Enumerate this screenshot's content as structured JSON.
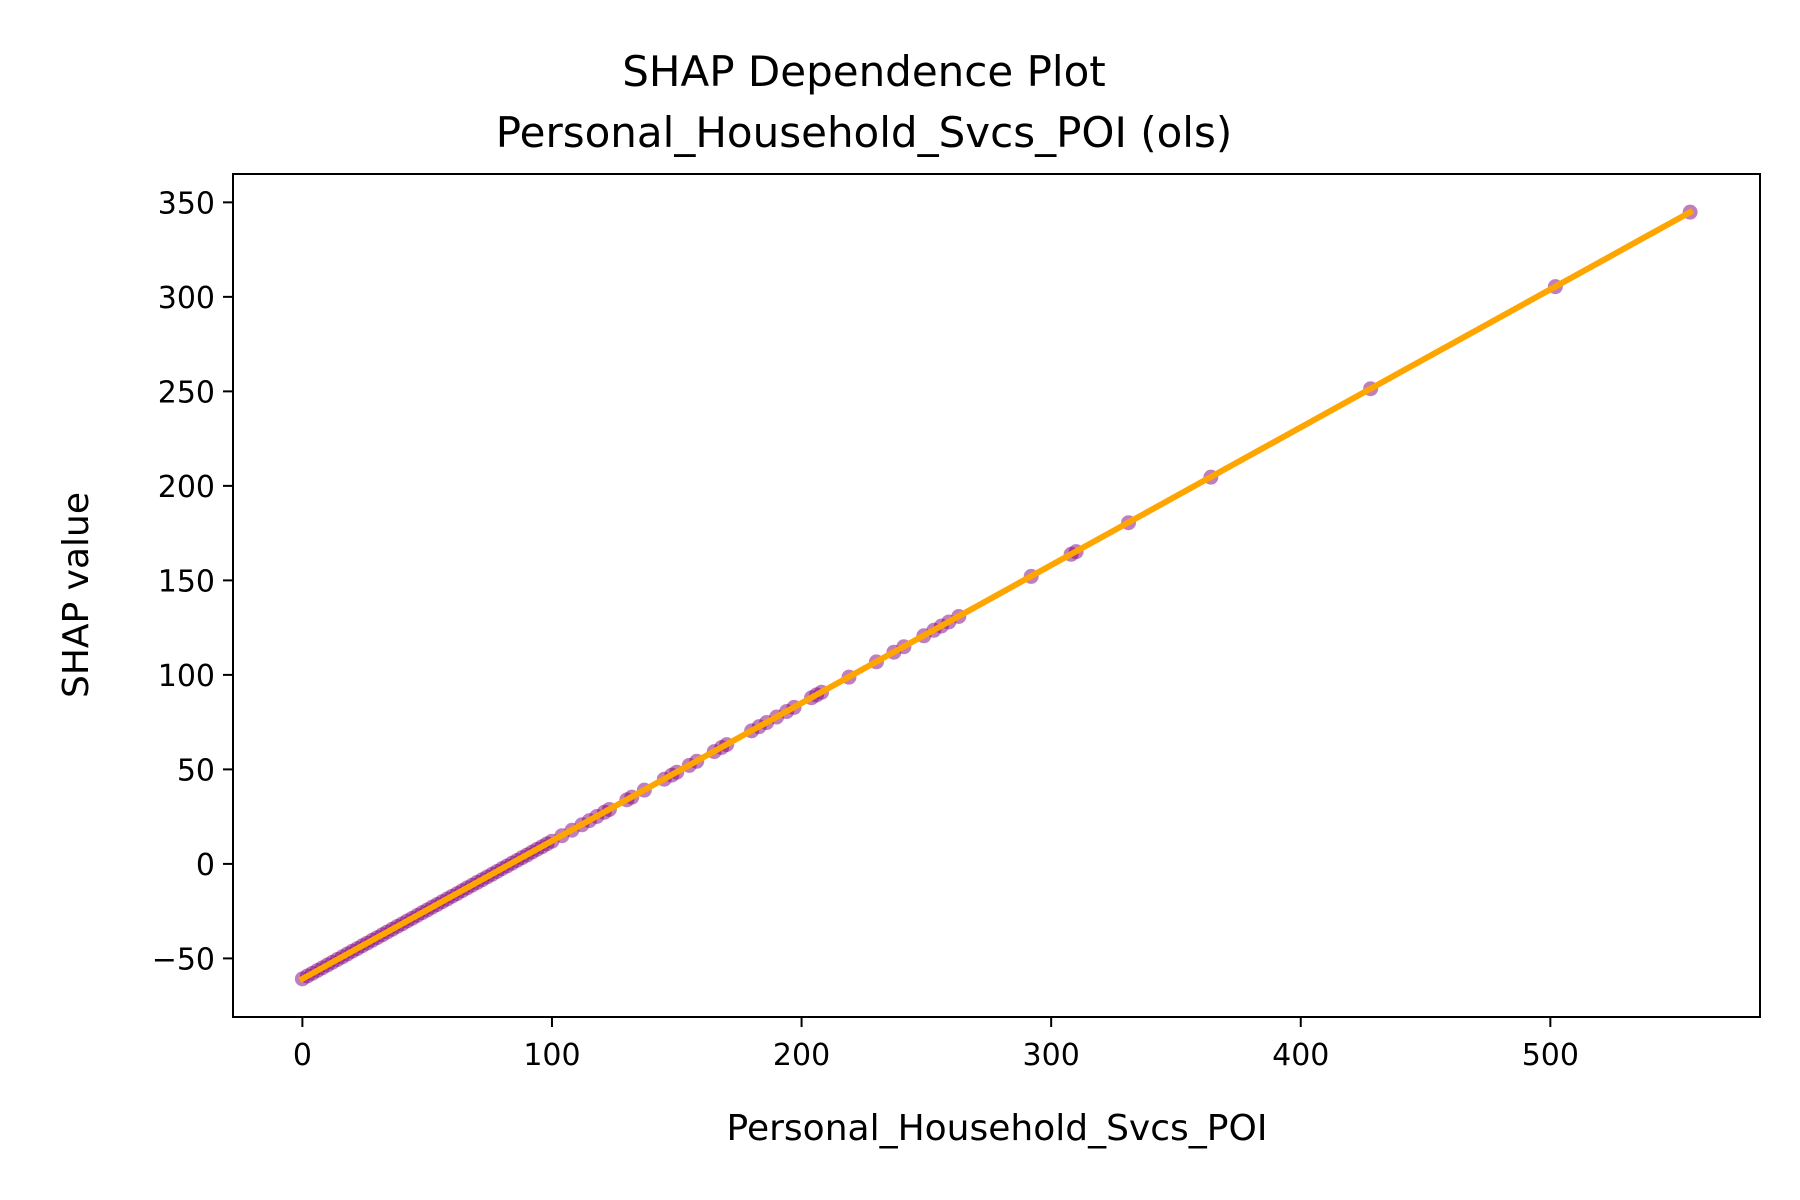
{
  "chart_data": {
    "type": "scatter",
    "title": "SHAP Dependence Plot",
    "subtitle": "Personal_Household_Svcs_POI (ols)",
    "xlabel": "Personal_Household_Svcs_POI",
    "ylabel": "SHAP value",
    "xlim": [
      -27.8,
      584
    ],
    "ylim": [
      -81,
      365
    ],
    "xticks": [
      0,
      100,
      200,
      300,
      400,
      500
    ],
    "xtick_labels": [
      "0",
      "100",
      "200",
      "300",
      "400",
      "500"
    ],
    "yticks": [
      -50,
      0,
      50,
      100,
      150,
      200,
      250,
      300,
      350
    ],
    "ytick_labels": [
      "−50",
      "0",
      "50",
      "100",
      "150",
      "200",
      "250",
      "300",
      "350"
    ],
    "grid": false,
    "point_color": "#800080",
    "line_color": "#FFA500",
    "series": [
      {
        "type": "scatter",
        "x": [
          0,
          2,
          4,
          6,
          8,
          10,
          12,
          14,
          16,
          18,
          20,
          22,
          24,
          26,
          28,
          30,
          32,
          34,
          36,
          38,
          40,
          42,
          44,
          46,
          48,
          50,
          52,
          54,
          56,
          58,
          60,
          62,
          64,
          66,
          68,
          70,
          72,
          74,
          76,
          78,
          80,
          82,
          84,
          86,
          88,
          90,
          92,
          94,
          96,
          98,
          100,
          104,
          108,
          112,
          115,
          118,
          121,
          123,
          130,
          132,
          137,
          145,
          148,
          150,
          155,
          158,
          165,
          168,
          170,
          180,
          183,
          186,
          190,
          194,
          197,
          204,
          206,
          208,
          219,
          230,
          237,
          241,
          249,
          253,
          256,
          259,
          263,
          292,
          308,
          310,
          331,
          364,
          428,
          502,
          556
        ],
        "y": [
          -60.8,
          -59.3,
          -57.9,
          -56.4,
          -55.0,
          -53.5,
          -52.1,
          -50.6,
          -49.2,
          -47.7,
          -46.2,
          -44.8,
          -43.3,
          -41.9,
          -40.4,
          -39.0,
          -37.5,
          -36.0,
          -34.6,
          -33.1,
          -31.7,
          -30.2,
          -28.8,
          -27.3,
          -25.8,
          -24.4,
          -22.9,
          -21.5,
          -20.0,
          -18.6,
          -17.1,
          -15.7,
          -14.2,
          -12.7,
          -11.3,
          -9.8,
          -8.4,
          -6.9,
          -5.5,
          -4.0,
          -2.5,
          -1.1,
          0.4,
          1.8,
          3.3,
          4.7,
          6.2,
          7.7,
          9.1,
          10.6,
          12.0,
          14.9,
          17.8,
          20.7,
          22.9,
          25.1,
          27.3,
          28.8,
          33.9,
          35.3,
          39.0,
          44.8,
          47.0,
          48.5,
          52.1,
          54.3,
          59.4,
          61.6,
          63.1,
          70.4,
          72.6,
          74.8,
          77.7,
          80.6,
          82.8,
          87.9,
          89.4,
          90.8,
          98.8,
          106.9,
          112.0,
          114.9,
          120.7,
          123.6,
          125.8,
          128.0,
          130.9,
          152.1,
          163.8,
          165.2,
          180.5,
          204.6,
          251.4,
          305.4,
          344.8
        ]
      },
      {
        "type": "line",
        "x": [
          0,
          556
        ],
        "y": [
          -60.8,
          344.8
        ]
      }
    ]
  }
}
